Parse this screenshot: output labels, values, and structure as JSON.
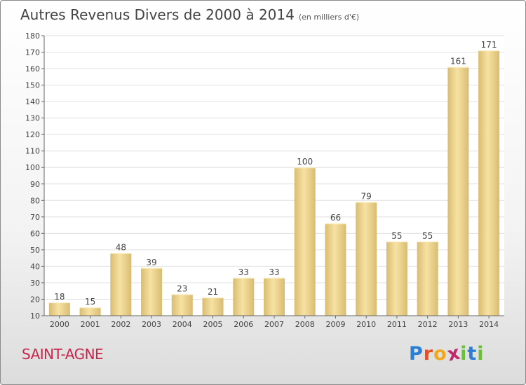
{
  "title": "Autres Revenus Divers de 2000 à 2014",
  "subtitle": "(en milliers d'€)",
  "city": "SAINT-AGNE",
  "logo": {
    "letters": [
      "P",
      "r",
      "o",
      "x",
      "i",
      "t",
      "i"
    ],
    "colors": [
      "#2a7fd4",
      "#e0532a",
      "#f2a81d",
      "#c02a6c",
      "#6cbf3a",
      "#2a7fd4",
      "#6cbf3a"
    ]
  },
  "colors": {
    "bar_light": "#f7e2a3",
    "bar_dark": "#d9bc72",
    "grid": "#e0e0e0",
    "axis": "#666666",
    "title": "#444444",
    "city": "#c8264a"
  },
  "chart_data": {
    "type": "bar",
    "categories": [
      "2000",
      "2001",
      "2002",
      "2003",
      "2004",
      "2005",
      "2006",
      "2007",
      "2008",
      "2009",
      "2010",
      "2011",
      "2012",
      "2013",
      "2014"
    ],
    "values": [
      18,
      15,
      48,
      39,
      23,
      21,
      33,
      33,
      100,
      66,
      79,
      55,
      55,
      161,
      171
    ],
    "ylim": [
      10,
      180
    ],
    "yticks": [
      10,
      20,
      30,
      40,
      50,
      60,
      70,
      80,
      90,
      100,
      110,
      120,
      130,
      140,
      150,
      160,
      170,
      180
    ],
    "grid": true,
    "data_labels": true
  }
}
